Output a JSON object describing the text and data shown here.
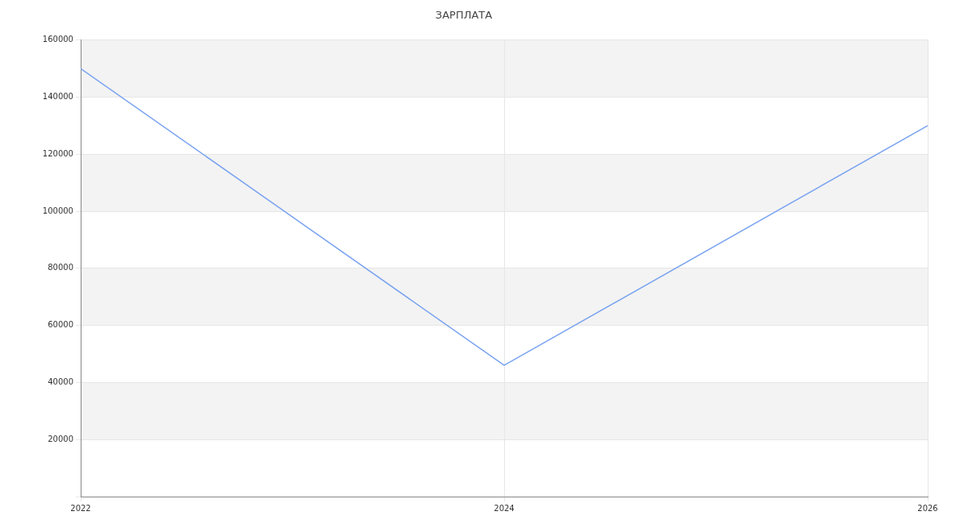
{
  "chart_data": {
    "type": "line",
    "title": "ЗАРПЛАТА",
    "x": [
      2022,
      2024,
      2026
    ],
    "series": [
      {
        "color": "#7aa3f0",
        "values": [
          150000,
          46000,
          130000
        ]
      }
    ],
    "xlim": [
      2022,
      2026
    ],
    "xticks": [
      2022,
      2024,
      2026
    ],
    "ylim": [
      0,
      160000
    ],
    "yticks": [
      {
        "value": 0,
        "label": null
      },
      20000,
      40000,
      60000,
      80000,
      100000,
      120000,
      140000,
      160000
    ],
    "grid": true,
    "legend": false,
    "marker": "none",
    "line_style": "solid"
  }
}
